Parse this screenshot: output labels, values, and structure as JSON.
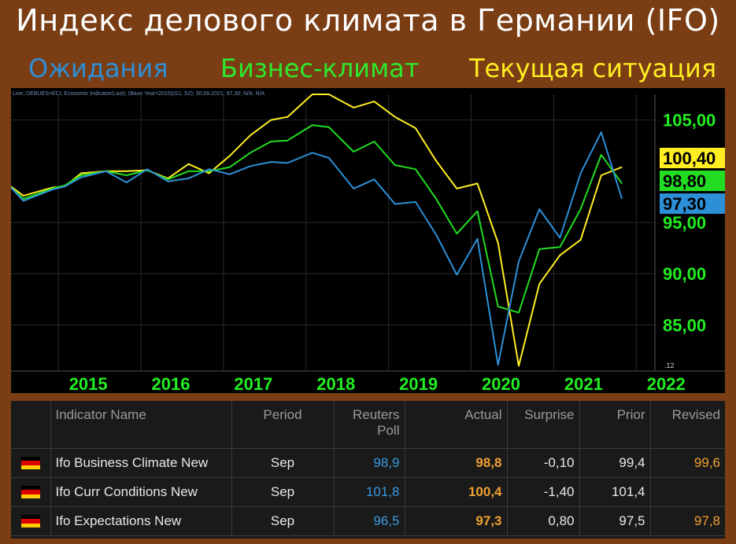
{
  "title": "Индекс делового климата в Германии (IFO)",
  "legend": {
    "expectations": "Ожидания",
    "business": "Бизнес-климат",
    "current": "Текущая ситуация"
  },
  "colors": {
    "expectations": "#2d8fd6",
    "business": "#22dd22",
    "current": "#ffee22",
    "axis_green": "#22ee22",
    "background": "#7a3d14"
  },
  "chart_data": {
    "type": "line",
    "header_text": "Line; DEBUES=ECI; Economic Indicator(Last); (Base Year=2015)(S1; S2); 30.09.2021; 97,30; N/A; N/A",
    "x_ticks": [
      "2015",
      "2016",
      "2017",
      "2018",
      "2019",
      "2020",
      "2021",
      "2022"
    ],
    "x_tick_values": [
      2015,
      2016,
      2017,
      2018,
      2019,
      2020,
      2021,
      2022
    ],
    "xlim": [
      2014.35,
      2022.15
    ],
    "y_ticks": [
      "105,00",
      "95,00",
      "90,00",
      "85,00"
    ],
    "y_tick_values": [
      105,
      95,
      90,
      85
    ],
    "ylim": [
      80.5,
      107.5
    ],
    "corner_label": ".12",
    "value_badges": [
      {
        "label": "100,40",
        "value": 100.4,
        "series": "current",
        "bg": "#ffee22",
        "fg": "#000000"
      },
      {
        "label": "98,80",
        "value": 98.8,
        "series": "business",
        "bg": "#22dd22",
        "fg": "#000000"
      },
      {
        "label": "97,30",
        "value": 97.3,
        "series": "expectations",
        "bg": "#2d8fd6",
        "fg": "#000000"
      }
    ],
    "series": [
      {
        "key": "current",
        "color": "#ffee22",
        "x": [
          2014.35,
          2014.5,
          2014.85,
          2015.0,
          2015.2,
          2015.5,
          2015.75,
          2016.0,
          2016.25,
          2016.5,
          2016.75,
          2017.0,
          2017.25,
          2017.5,
          2017.7,
          2018.0,
          2018.2,
          2018.5,
          2018.75,
          2019.0,
          2019.25,
          2019.5,
          2019.75,
          2020.0,
          2020.25,
          2020.5,
          2020.75,
          2021.0,
          2021.25,
          2021.5,
          2021.75
        ],
        "y": [
          98.5,
          97.6,
          98.4,
          98.5,
          99.8,
          100.0,
          100.0,
          100.1,
          99.3,
          100.7,
          99.8,
          101.5,
          103.5,
          105.0,
          105.3,
          107.5,
          107.5,
          106.2,
          106.8,
          105.3,
          104.2,
          101.0,
          98.3,
          98.8,
          93.0,
          81.0,
          89.0,
          91.8,
          93.3,
          99.6,
          100.4
        ]
      },
      {
        "key": "business",
        "color": "#22dd22",
        "x": [
          2014.35,
          2014.5,
          2014.85,
          2015.0,
          2015.2,
          2015.5,
          2015.75,
          2016.0,
          2016.25,
          2016.5,
          2016.75,
          2017.0,
          2017.25,
          2017.5,
          2017.7,
          2018.0,
          2018.2,
          2018.5,
          2018.75,
          2019.0,
          2019.25,
          2019.5,
          2019.75,
          2020.0,
          2020.25,
          2020.5,
          2020.75,
          2021.0,
          2021.25,
          2021.5,
          2021.75
        ],
        "y": [
          98.4,
          97.3,
          98.3,
          98.6,
          99.6,
          100.0,
          99.6,
          100.1,
          99.2,
          100.0,
          100.0,
          100.4,
          101.8,
          102.9,
          103.0,
          104.5,
          104.3,
          101.9,
          102.9,
          100.6,
          100.2,
          97.3,
          93.9,
          96.1,
          86.8,
          86.2,
          92.4,
          92.6,
          96.3,
          101.6,
          98.8
        ]
      },
      {
        "key": "expectations",
        "color": "#2d8fd6",
        "x": [
          2014.35,
          2014.5,
          2014.85,
          2015.0,
          2015.2,
          2015.5,
          2015.75,
          2016.0,
          2016.25,
          2016.5,
          2016.75,
          2017.0,
          2017.25,
          2017.5,
          2017.7,
          2018.0,
          2018.2,
          2018.5,
          2018.75,
          2019.0,
          2019.25,
          2019.5,
          2019.75,
          2020.0,
          2020.25,
          2020.5,
          2020.75,
          2021.0,
          2021.25,
          2021.5,
          2021.75
        ],
        "y": [
          98.4,
          97.1,
          98.2,
          98.5,
          99.4,
          100.0,
          98.9,
          100.2,
          99.0,
          99.3,
          100.2,
          99.7,
          100.5,
          100.9,
          100.8,
          101.8,
          101.3,
          98.3,
          99.2,
          96.8,
          97.0,
          93.8,
          89.9,
          93.4,
          81.1,
          91.2,
          96.3,
          93.5,
          99.8,
          103.8,
          97.3
        ]
      }
    ]
  },
  "table": {
    "headers": {
      "name": "Indicator Name",
      "period": "Period",
      "poll": "Reuters Poll",
      "actual": "Actual",
      "surprise": "Surprise",
      "prior": "Prior",
      "revised": "Revised"
    },
    "rows": [
      {
        "name": "Ifo Business Climate New",
        "period": "Sep",
        "poll": "98,9",
        "actual": "98,8",
        "surprise": "-0,10",
        "prior": "99,4",
        "revised": "99,6"
      },
      {
        "name": "Ifo Curr Conditions New",
        "period": "Sep",
        "poll": "101,8",
        "actual": "100,4",
        "surprise": "-1,40",
        "prior": "101,4",
        "revised": ""
      },
      {
        "name": "Ifo Expectations New",
        "period": "Sep",
        "poll": "96,5",
        "actual": "97,3",
        "surprise": "0,80",
        "prior": "97,5",
        "revised": "97,8"
      }
    ]
  }
}
